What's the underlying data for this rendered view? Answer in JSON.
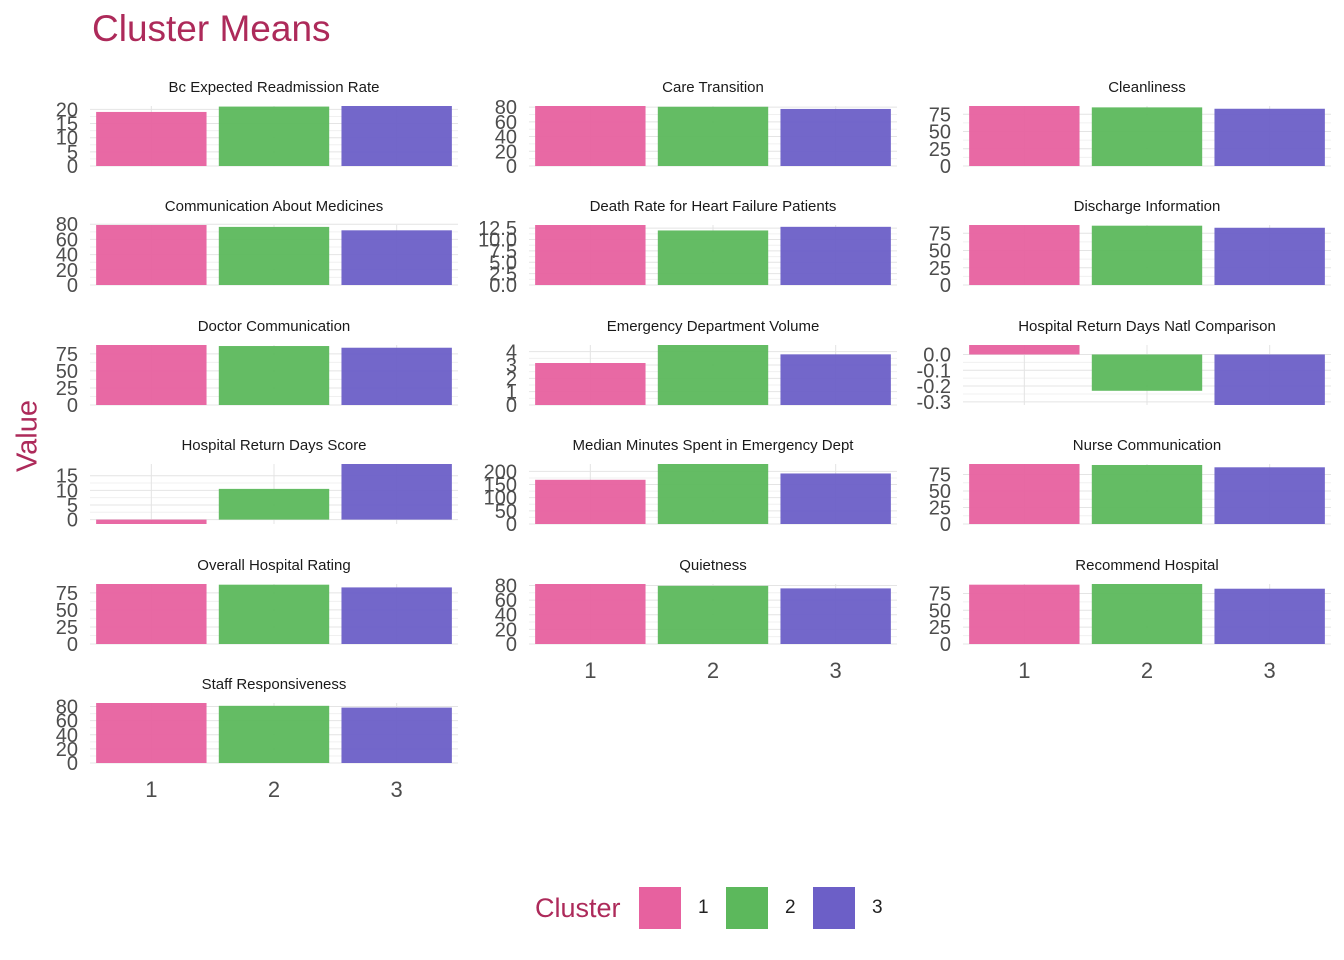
{
  "chart_data": {
    "type": "bar",
    "title": "Cluster Means",
    "ylabel": "Value",
    "xlabel": "",
    "categories": [
      "1",
      "2",
      "3"
    ],
    "legend": {
      "title": "Cluster",
      "placement": "bottom",
      "entries": [
        "1",
        "2",
        "3"
      ]
    },
    "colors": [
      "#e7619f",
      "#5cb85c",
      "#6c5fc7"
    ],
    "grid": true,
    "panels": [
      {
        "name": "Bc Expected Readmission Rate",
        "values": [
          19.1,
          21.0,
          21.2
        ],
        "ylim": [
          0,
          21.2
        ],
        "ticks": [
          0,
          5,
          10,
          15,
          20
        ],
        "tick_labels": [
          "0",
          "5",
          "10",
          "15",
          "20"
        ]
      },
      {
        "name": "Care Transition",
        "values": [
          81.5,
          80.5,
          77.5
        ],
        "ylim": [
          0,
          81.5
        ],
        "ticks": [
          0,
          20,
          40,
          60,
          80
        ],
        "tick_labels": [
          "0",
          "20",
          "40",
          "60",
          "80"
        ]
      },
      {
        "name": "Cleanliness",
        "values": [
          87.0,
          85.0,
          83.0
        ],
        "ylim": [
          0,
          87
        ],
        "ticks": [
          0,
          25,
          50,
          75
        ],
        "tick_labels": [
          "0",
          "25",
          "50",
          "75"
        ]
      },
      {
        "name": "Communication About Medicines",
        "values": [
          79.0,
          76.5,
          72.0
        ],
        "ylim": [
          0,
          79
        ],
        "ticks": [
          0,
          20,
          40,
          60,
          80
        ],
        "tick_labels": [
          "0",
          "20",
          "40",
          "60",
          "80"
        ]
      },
      {
        "name": "Death Rate for Heart Failure Patients",
        "values": [
          13.2,
          12.0,
          12.8
        ],
        "ylim": [
          0,
          13.2
        ],
        "ticks": [
          0,
          2.5,
          5,
          7.5,
          10,
          12.5
        ],
        "tick_labels": [
          "0.0",
          "2.5",
          "5.0",
          "7.5",
          "10.0",
          "12.5"
        ]
      },
      {
        "name": "Discharge Information",
        "values": [
          87.0,
          86.0,
          83.0
        ],
        "ylim": [
          0,
          87
        ],
        "ticks": [
          0,
          25,
          50,
          75
        ],
        "tick_labels": [
          "0",
          "25",
          "50",
          "75"
        ]
      },
      {
        "name": "Doctor Communication",
        "values": [
          88.0,
          86.5,
          84.0
        ],
        "ylim": [
          0,
          88
        ],
        "ticks": [
          0,
          25,
          50,
          75
        ],
        "tick_labels": [
          "0",
          "25",
          "50",
          "75"
        ]
      },
      {
        "name": "Emergency Department Volume",
        "values": [
          3.15,
          4.5,
          3.8
        ],
        "ylim": [
          0,
          4.5
        ],
        "ticks": [
          0,
          1,
          2,
          3,
          4
        ],
        "tick_labels": [
          "0",
          "1",
          "2",
          "3",
          "4"
        ]
      },
      {
        "name": "Hospital Return Days Natl Comparison",
        "values": [
          0.06,
          -0.23,
          -0.32
        ],
        "ylim": [
          -0.32,
          0.06
        ],
        "ticks": [
          0,
          -0.1,
          -0.2,
          -0.3
        ],
        "tick_labels": [
          "0.0",
          "-0.1",
          "-0.2",
          "-0.3"
        ]
      },
      {
        "name": "Hospital Return Days Score",
        "values": [
          -1.5,
          10.5,
          19.0
        ],
        "ylim": [
          -1.5,
          19
        ],
        "ticks": [
          0,
          5,
          10,
          15
        ],
        "tick_labels": [
          "0",
          "5",
          "10",
          "15"
        ]
      },
      {
        "name": "Median Minutes Spent in Emergency Dept",
        "values": [
          168,
          228,
          192
        ],
        "ylim": [
          0,
          228
        ],
        "ticks": [
          0,
          50,
          100,
          150,
          200
        ],
        "tick_labels": [
          "0",
          "50",
          "100",
          "150",
          "200"
        ]
      },
      {
        "name": "Nurse Communication",
        "values": [
          91.0,
          89.5,
          86.0
        ],
        "ylim": [
          0,
          91
        ],
        "ticks": [
          0,
          25,
          50,
          75
        ],
        "tick_labels": [
          "0",
          "25",
          "50",
          "75"
        ]
      },
      {
        "name": "Overall Hospital Rating",
        "values": [
          88.0,
          87.0,
          83.0
        ],
        "ylim": [
          0,
          88
        ],
        "ticks": [
          0,
          25,
          50,
          75
        ],
        "tick_labels": [
          "0",
          "25",
          "50",
          "75"
        ]
      },
      {
        "name": "Quietness",
        "values": [
          82.0,
          79.5,
          76.0
        ],
        "ylim": [
          0,
          82
        ],
        "ticks": [
          0,
          20,
          40,
          60,
          80
        ],
        "tick_labels": [
          "0",
          "20",
          "40",
          "60",
          "80"
        ]
      },
      {
        "name": "Recommend Hospital",
        "values": [
          88.0,
          89.0,
          82.0
        ],
        "ylim": [
          0,
          89
        ],
        "ticks": [
          0,
          25,
          50,
          75
        ],
        "tick_labels": [
          "0",
          "25",
          "50",
          "75"
        ]
      },
      {
        "name": "Staff Responsiveness",
        "values": [
          85.0,
          81.0,
          78.5
        ],
        "ylim": [
          0,
          85
        ],
        "ticks": [
          0,
          20,
          40,
          60,
          80
        ],
        "tick_labels": [
          "0",
          "20",
          "40",
          "60",
          "80"
        ]
      }
    ]
  }
}
